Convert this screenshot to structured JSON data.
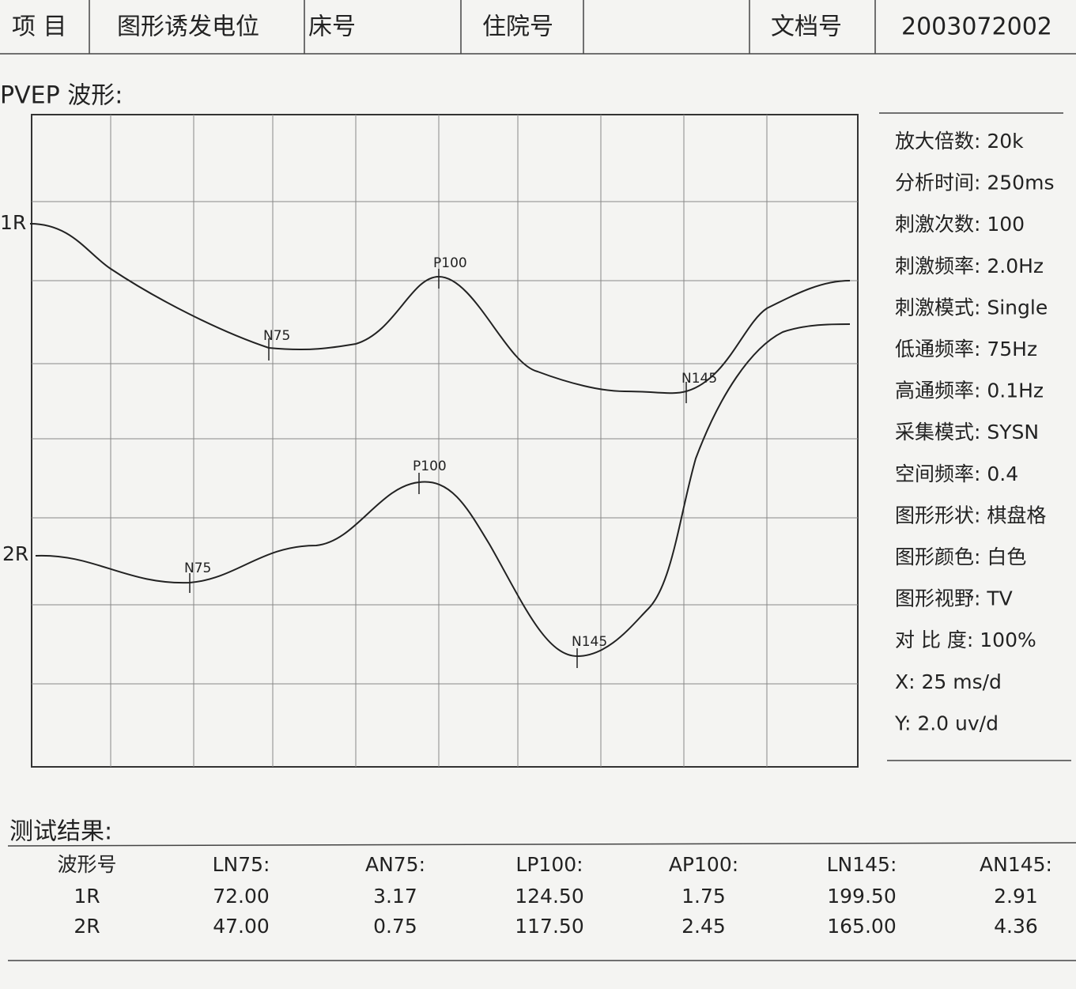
{
  "header": {
    "cells": [
      "项 目",
      "图形诱发电位",
      "床号",
      "住院号",
      "文档号",
      "2003072002"
    ]
  },
  "waveform": {
    "title": "PVEP 波形:",
    "traces": [
      {
        "label": "1R",
        "peaks": [
          "N75",
          "P100",
          "N145"
        ]
      },
      {
        "label": "2R",
        "peaks": [
          "N75",
          "P100",
          "N145"
        ]
      }
    ]
  },
  "settings": [
    "放大倍数: 20k",
    "分析时间: 250ms",
    "刺激次数: 100",
    "刺激频率: 2.0Hz",
    "刺激模式: Single",
    "低通频率: 75Hz",
    "高通频率: 0.1Hz",
    "采集模式: SYSN",
    "空间频率: 0.4",
    "图形形状: 棋盘格",
    "图形颜色: 白色",
    "图形视野: TV",
    "对 比 度: 100%",
    "X: 25 ms/d",
    "Y: 2.0 uv/d"
  ],
  "results": {
    "title": "测试结果:",
    "headers": [
      "波形号",
      "LN75:",
      "AN75:",
      "LP100:",
      "AP100:",
      "LN145:",
      "AN145:"
    ],
    "rows": [
      [
        "1R",
        "72.00",
        "3.17",
        "124.50",
        "1.75",
        "199.50",
        "2.91"
      ],
      [
        "2R",
        "47.00",
        "0.75",
        "117.50",
        "2.45",
        "165.00",
        "4.36"
      ]
    ]
  }
}
